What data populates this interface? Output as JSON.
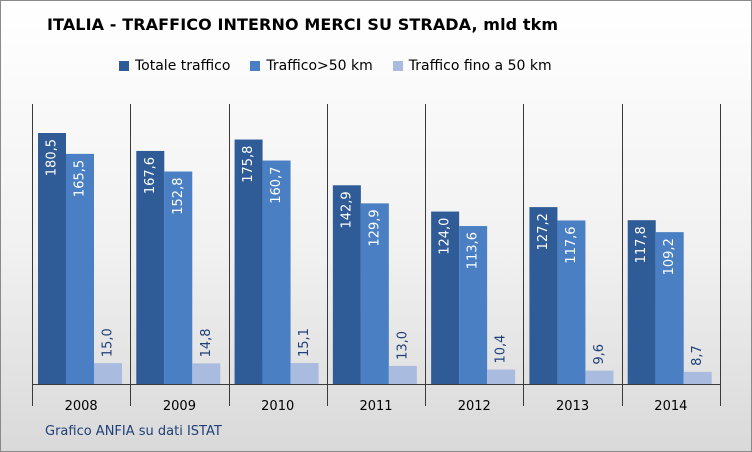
{
  "chart_data": {
    "type": "bar",
    "title": "ITALIA - TRAFFICO INTERNO MERCI SU STRADA, mld tkm",
    "categories": [
      "2008",
      "2009",
      "2010",
      "2011",
      "2012",
      "2013",
      "2014"
    ],
    "series": [
      {
        "name": "Totale traffico",
        "color": "#2f5b96",
        "values": [
          180.5,
          167.6,
          175.8,
          142.9,
          124.0,
          127.2,
          117.8
        ]
      },
      {
        "name": "Traffico>50 km",
        "color": "#4a80c3",
        "values": [
          165.5,
          152.8,
          160.7,
          129.9,
          113.6,
          117.6,
          109.2
        ]
      },
      {
        "name": "Traffico fino a 50 km",
        "color": "#a9bcdf",
        "values": [
          15.0,
          14.8,
          15.1,
          13.0,
          10.4,
          9.6,
          8.7
        ]
      }
    ],
    "value_labels": [
      [
        "180,5",
        "167,6",
        "175,8",
        "142,9",
        "124,0",
        "127,2",
        "117,8"
      ],
      [
        "165,5",
        "152,8",
        "160,7",
        "129,9",
        "113,6",
        "117,6",
        "109,2"
      ],
      [
        "15,0",
        "14,8",
        "15,1",
        "13,0",
        "10,4",
        "9,6",
        "8,7"
      ]
    ],
    "ylim": [
      0,
      185
    ],
    "legend_position": "top",
    "grid": false,
    "label_colors": [
      "#ffffff",
      "#ffffff",
      "#1f3f78"
    ]
  },
  "source": "Grafico ANFIA su dati ISTAT"
}
